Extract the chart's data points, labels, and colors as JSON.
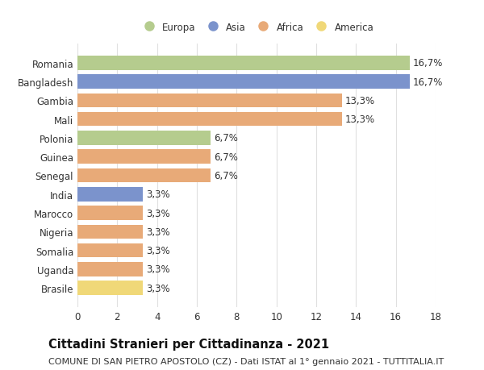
{
  "categories": [
    "Romania",
    "Bangladesh",
    "Gambia",
    "Mali",
    "Polonia",
    "Guinea",
    "Senegal",
    "India",
    "Marocco",
    "Nigeria",
    "Somalia",
    "Uganda",
    "Brasile"
  ],
  "values": [
    16.7,
    16.7,
    13.3,
    13.3,
    6.7,
    6.7,
    6.7,
    3.3,
    3.3,
    3.3,
    3.3,
    3.3,
    3.3
  ],
  "labels": [
    "16,7%",
    "16,7%",
    "13,3%",
    "13,3%",
    "6,7%",
    "6,7%",
    "6,7%",
    "3,3%",
    "3,3%",
    "3,3%",
    "3,3%",
    "3,3%",
    "3,3%"
  ],
  "colors": [
    "#b5cc8e",
    "#7b93cc",
    "#e8aa78",
    "#e8aa78",
    "#b5cc8e",
    "#e8aa78",
    "#e8aa78",
    "#7b93cc",
    "#e8aa78",
    "#e8aa78",
    "#e8aa78",
    "#e8aa78",
    "#f0d878"
  ],
  "legend_labels": [
    "Europa",
    "Asia",
    "Africa",
    "America"
  ],
  "legend_colors": [
    "#b5cc8e",
    "#7b93cc",
    "#e8aa78",
    "#f0d878"
  ],
  "title": "Cittadini Stranieri per Cittadinanza - 2021",
  "subtitle": "COMUNE DI SAN PIETRO APOSTOLO (CZ) - Dati ISTAT al 1° gennaio 2021 - TUTTITALIA.IT",
  "xlim": [
    0,
    18
  ],
  "xticks": [
    0,
    2,
    4,
    6,
    8,
    10,
    12,
    14,
    16,
    18
  ],
  "background_color": "#ffffff",
  "grid_color": "#e0e0e0",
  "bar_height": 0.75,
  "label_fontsize": 8.5,
  "tick_fontsize": 8.5,
  "title_fontsize": 10.5,
  "subtitle_fontsize": 8
}
